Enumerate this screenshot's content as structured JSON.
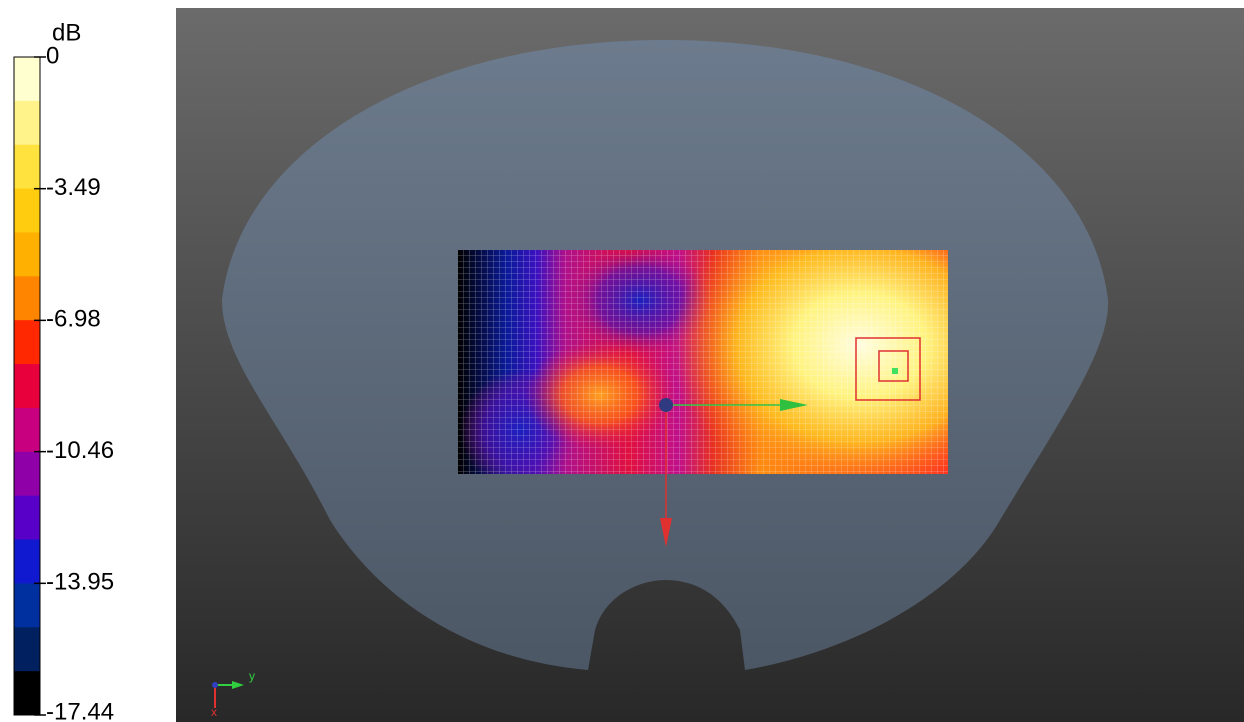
{
  "colorbar": {
    "unit": "dB",
    "ticks": [
      0,
      -3.49,
      -6.98,
      -10.46,
      -13.95,
      -17.44
    ]
  },
  "axes_triad": {
    "y_label": "y",
    "x_label": "x"
  }
}
